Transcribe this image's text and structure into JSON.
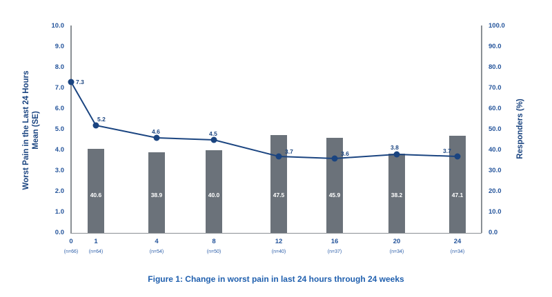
{
  "chart_data": {
    "type": "combo-bar-line",
    "caption": "Figure 1: Change in worst pain in last 24 hours through 24 weeks",
    "x_axis": {
      "week_labels": [
        "0",
        "1",
        "4",
        "8",
        "12",
        "16",
        "20",
        "24"
      ],
      "n_labels": [
        "(n=66)",
        "(n=64)",
        "(n=54)",
        "(n=50)",
        "(n=40)",
        "(n=37)",
        "(n=34)",
        "(n=34)"
      ]
    },
    "left_axis": {
      "label_line1": "Worst Pain in the Last 24 Hours",
      "label_line2": "Mean (SE)",
      "min": 0,
      "max": 10,
      "step": 1
    },
    "right_axis": {
      "label": "Responders (%)",
      "min": 0,
      "max": 100,
      "step": 10
    },
    "series": [
      {
        "name": "worst-pain-mean",
        "type": "line",
        "axis": "left",
        "values": [
          7.3,
          5.2,
          4.6,
          4.5,
          3.7,
          3.6,
          3.8,
          3.7
        ]
      },
      {
        "name": "responders-pct",
        "type": "bar",
        "axis": "right",
        "values": [
          null,
          40.6,
          38.9,
          40.0,
          47.5,
          45.9,
          38.2,
          47.1
        ]
      }
    ],
    "colors": {
      "line": "#1a4480",
      "point_label": "#1a4480",
      "bar": "#6b727a",
      "bar_label": "#ffffff",
      "axis_text": "#24549b",
      "axis_line": "#8a8f94",
      "caption": "#1f5fae"
    }
  }
}
